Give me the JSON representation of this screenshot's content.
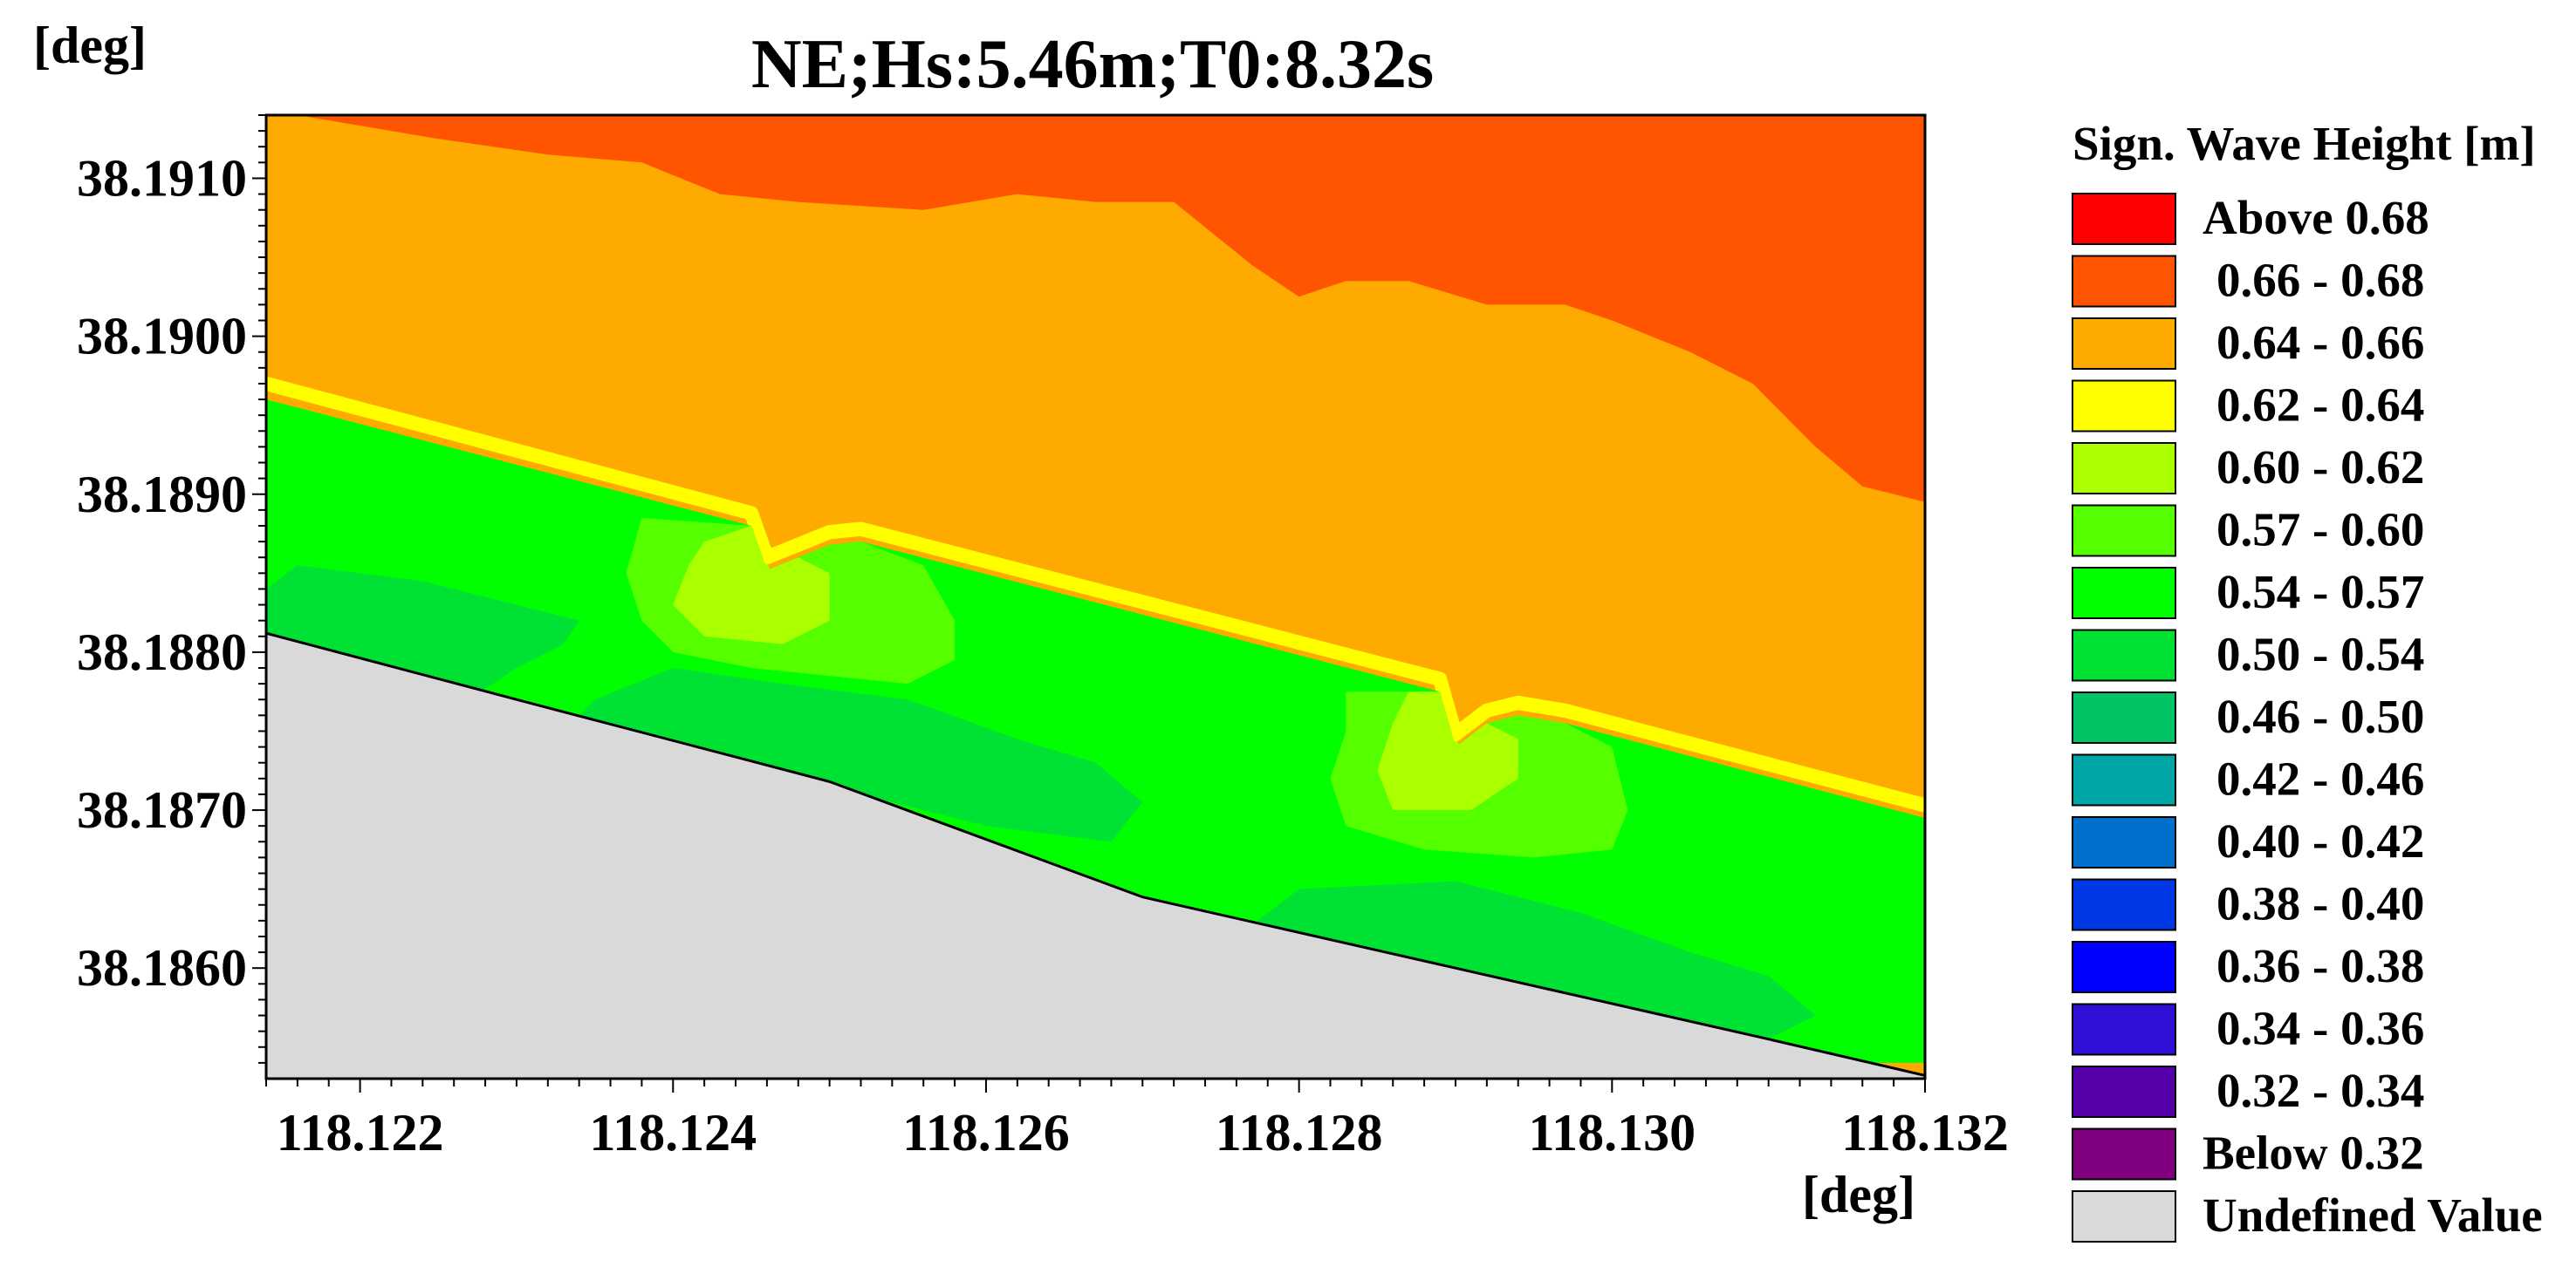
{
  "chart_data": {
    "type": "heatmap",
    "title": "NE;Hs:5.46m;T0:8.32s",
    "xlabel": "[deg]",
    "ylabel": "[deg]",
    "xlim": [
      118.1214,
      118.132
    ],
    "ylim": [
      38.1853,
      38.1914
    ],
    "x_ticks": [
      "118.122",
      "118.124",
      "118.126",
      "118.128",
      "118.130",
      "118.132"
    ],
    "x_tick_values": [
      118.122,
      118.124,
      118.126,
      118.128,
      118.13,
      118.132
    ],
    "y_ticks": [
      "38.1860",
      "38.1870",
      "38.1880",
      "38.1890",
      "38.1900",
      "38.1910"
    ],
    "y_tick_values": [
      38.186,
      38.187,
      38.188,
      38.189,
      38.19,
      38.191
    ],
    "legend": {
      "title": "Sign. Wave Height [m]",
      "placement": "right",
      "entries": [
        {
          "label": "Above 0.68",
          "color": "#ff0000"
        },
        {
          "label": "0.66 - 0.68",
          "color": "#ff5500"
        },
        {
          "label": "0.64 - 0.66",
          "color": "#ffaa00"
        },
        {
          "label": "0.62 - 0.64",
          "color": "#ffff00"
        },
        {
          "label": "0.60 - 0.62",
          "color": "#aaff00"
        },
        {
          "label": "0.57 - 0.60",
          "color": "#55ff00"
        },
        {
          "label": "0.54 - 0.57",
          "color": "#00ff00"
        },
        {
          "label": "0.50 - 0.54",
          "color": "#00e233"
        },
        {
          "label": "0.46 - 0.50",
          "color": "#00c466"
        },
        {
          "label": "0.42 - 0.46",
          "color": "#00a6a6"
        },
        {
          "label": "0.40 - 0.42",
          "color": "#0070cc"
        },
        {
          "label": "0.38 - 0.40",
          "color": "#0038e6"
        },
        {
          "label": "0.36 - 0.38",
          "color": "#0000ff"
        },
        {
          "label": "0.34 - 0.36",
          "color": "#2e10d6"
        },
        {
          "label": "0.32 - 0.34",
          "color": "#5500aa"
        },
        {
          "label": "Below 0.32",
          "color": "#800080"
        },
        {
          "label": "Undefined Value",
          "color": "#d9d9d9"
        }
      ]
    },
    "regions": [
      {
        "name": "band-0.66-0.68",
        "color": "#ff5500",
        "points": [
          [
            118.1214,
            38.1914
          ],
          [
            118.132,
            38.1914
          ],
          [
            118.132,
            38.18895
          ],
          [
            118.1316,
            38.18905
          ],
          [
            118.1313,
            38.1893
          ],
          [
            118.1309,
            38.1897
          ],
          [
            118.1305,
            38.1899
          ],
          [
            118.13,
            38.1901
          ],
          [
            118.1297,
            38.1902
          ],
          [
            118.1292,
            38.1902
          ],
          [
            118.1287,
            38.19035
          ],
          [
            118.1283,
            38.19035
          ],
          [
            118.128,
            38.19025
          ],
          [
            118.1277,
            38.19045
          ],
          [
            118.1272,
            38.19085
          ],
          [
            118.1267,
            38.19085
          ],
          [
            118.1262,
            38.1909
          ],
          [
            118.1259,
            38.19085
          ],
          [
            118.1256,
            38.1908
          ],
          [
            118.1248,
            38.19085
          ],
          [
            118.1243,
            38.1909
          ],
          [
            118.1238,
            38.1911
          ],
          [
            118.1232,
            38.19115
          ],
          [
            118.1225,
            38.19125
          ],
          [
            118.1216,
            38.1914
          ]
        ]
      },
      {
        "name": "band-0.54-0.57-west",
        "color": "#00ff00",
        "points": [
          [
            118.1214,
            38.1896
          ],
          [
            118.1245,
            38.1888
          ],
          [
            118.1246,
            38.18852
          ],
          [
            118.1248,
            38.1886
          ],
          [
            118.125,
            38.18868
          ],
          [
            118.1252,
            38.1887
          ],
          [
            118.1289,
            38.18775
          ],
          [
            118.129,
            38.1874
          ],
          [
            118.1292,
            38.18755
          ],
          [
            118.1294,
            38.1876
          ],
          [
            118.1297,
            38.18755
          ],
          [
            118.132,
            38.18695
          ],
          [
            118.132,
            38.1854
          ],
          [
            118.1214,
            38.1854
          ]
        ]
      },
      {
        "name": "band-0.50-0.54-west",
        "color": "#00e233",
        "points": [
          [
            118.1214,
            38.1884
          ],
          [
            118.1216,
            38.18855
          ],
          [
            118.1224,
            38.18845
          ],
          [
            118.123,
            38.1883
          ],
          [
            118.1234,
            38.1882
          ],
          [
            118.1233,
            38.18805
          ],
          [
            118.123,
            38.1879
          ],
          [
            118.1227,
            38.1877
          ],
          [
            118.1225,
            38.1876
          ],
          [
            118.1214,
            38.188
          ]
        ]
      },
      {
        "name": "band-0.50-0.54-mid",
        "color": "#00e233",
        "points": [
          [
            118.1233,
            38.1875
          ],
          [
            118.1235,
            38.1877
          ],
          [
            118.124,
            38.1879
          ],
          [
            118.1247,
            38.1878
          ],
          [
            118.1255,
            38.1877
          ],
          [
            118.1262,
            38.18745
          ],
          [
            118.1267,
            38.1873
          ],
          [
            118.127,
            38.18705
          ],
          [
            118.1268,
            38.1868
          ],
          [
            118.126,
            38.1869
          ],
          [
            118.1252,
            38.1871
          ],
          [
            118.1244,
            38.18725
          ],
          [
            118.1236,
            38.18745
          ]
        ]
      },
      {
        "name": "band-0.50-0.54-east",
        "color": "#00e233",
        "points": [
          [
            118.1276,
            38.1862
          ],
          [
            118.128,
            38.1865
          ],
          [
            118.129,
            38.18655
          ],
          [
            118.1298,
            38.18635
          ],
          [
            118.1305,
            38.1861
          ],
          [
            118.131,
            38.18595
          ],
          [
            118.1313,
            38.1857
          ],
          [
            118.131,
            38.18555
          ],
          [
            118.13,
            38.18575
          ],
          [
            118.129,
            38.186
          ],
          [
            118.1282,
            38.18615
          ]
        ]
      },
      {
        "name": "band-0.57-0.60-west",
        "color": "#55ff00",
        "points": [
          [
            118.1238,
            38.18885
          ],
          [
            118.1245,
            38.1888
          ],
          [
            118.1246,
            38.18852
          ],
          [
            118.1248,
            38.1886
          ],
          [
            118.125,
            38.18868
          ],
          [
            118.1252,
            38.1887
          ],
          [
            118.1256,
            38.18855
          ],
          [
            118.1258,
            38.1882
          ],
          [
            118.1258,
            38.18795
          ],
          [
            118.1255,
            38.1878
          ],
          [
            118.125,
            38.18785
          ],
          [
            118.1245,
            38.1879
          ],
          [
            118.124,
            38.188
          ],
          [
            118.1238,
            38.1882
          ],
          [
            118.1237,
            38.1885
          ]
        ]
      },
      {
        "name": "band-0.57-0.60-east",
        "color": "#55ff00",
        "points": [
          [
            118.1283,
            38.18775
          ],
          [
            118.1289,
            38.18775
          ],
          [
            118.129,
            38.1874
          ],
          [
            118.1292,
            38.18755
          ],
          [
            118.1294,
            38.1876
          ],
          [
            118.1297,
            38.18755
          ],
          [
            118.13,
            38.1874
          ],
          [
            118.1301,
            38.187
          ],
          [
            118.13,
            38.18675
          ],
          [
            118.1295,
            38.1867
          ],
          [
            118.1288,
            38.18675
          ],
          [
            118.1283,
            38.1869
          ],
          [
            118.1282,
            38.1872
          ],
          [
            118.1283,
            38.1875
          ]
        ]
      },
      {
        "name": "band-0.60-0.62-west",
        "color": "#aaff00",
        "points": [
          [
            118.1242,
            38.1887
          ],
          [
            118.1245,
            38.1888
          ],
          [
            118.1246,
            38.18852
          ],
          [
            118.1248,
            38.1886
          ],
          [
            118.125,
            38.1885
          ],
          [
            118.125,
            38.1882
          ],
          [
            118.1247,
            38.18805
          ],
          [
            118.1242,
            38.1881
          ],
          [
            118.124,
            38.1883
          ],
          [
            118.1241,
            38.18855
          ]
        ]
      },
      {
        "name": "band-0.60-0.62-east",
        "color": "#aaff00",
        "points": [
          [
            118.1287,
            38.18775
          ],
          [
            118.1289,
            38.18775
          ],
          [
            118.129,
            38.1874
          ],
          [
            118.1292,
            38.18755
          ],
          [
            118.1294,
            38.18745
          ],
          [
            118.1294,
            38.1872
          ],
          [
            118.1291,
            38.187
          ],
          [
            118.1286,
            38.187
          ],
          [
            118.1285,
            38.18725
          ],
          [
            118.1286,
            38.18755
          ]
        ]
      }
    ],
    "strips": [
      {
        "name": "strip-0.60-0.62",
        "color": "#aaff00",
        "width": 9e-05,
        "points": [
          [
            118.1214,
            38.18955
          ],
          [
            118.1245,
            38.18872
          ],
          [
            118.1246,
            38.18844
          ],
          [
            118.1248,
            38.18852
          ],
          [
            118.125,
            38.1886
          ],
          [
            118.1252,
            38.18862
          ],
          [
            118.1289,
            38.18767
          ],
          [
            118.129,
            38.18732
          ],
          [
            118.1292,
            38.18747
          ],
          [
            118.1294,
            38.18752
          ],
          [
            118.1297,
            38.18747
          ],
          [
            118.132,
            38.18687
          ]
        ]
      },
      {
        "name": "strip-0.62-0.64",
        "color": "#ffff00",
        "width": 9e-05,
        "points": [
          [
            118.1214,
            38.1897
          ],
          [
            118.1245,
            38.18888
          ],
          [
            118.1246,
            38.1886
          ],
          [
            118.1248,
            38.18868
          ],
          [
            118.125,
            38.18876
          ],
          [
            118.1252,
            38.18878
          ],
          [
            118.1289,
            38.18783
          ],
          [
            118.129,
            38.18748
          ],
          [
            118.1292,
            38.18763
          ],
          [
            118.1294,
            38.18768
          ],
          [
            118.1297,
            38.18763
          ],
          [
            118.132,
            38.18703
          ]
        ]
      }
    ],
    "undefined_area": {
      "name": "land",
      "color": "#d9d9d9",
      "points": [
        [
          118.1214,
          38.18812
        ],
        [
          118.123,
          38.1877
        ],
        [
          118.125,
          38.18718
        ],
        [
          118.127,
          38.18645
        ],
        [
          118.129,
          38.186
        ],
        [
          118.131,
          38.18555
        ],
        [
          118.132,
          38.18532
        ],
        [
          118.132,
          38.1853
        ],
        [
          118.1214,
          38.1853
        ]
      ]
    }
  }
}
